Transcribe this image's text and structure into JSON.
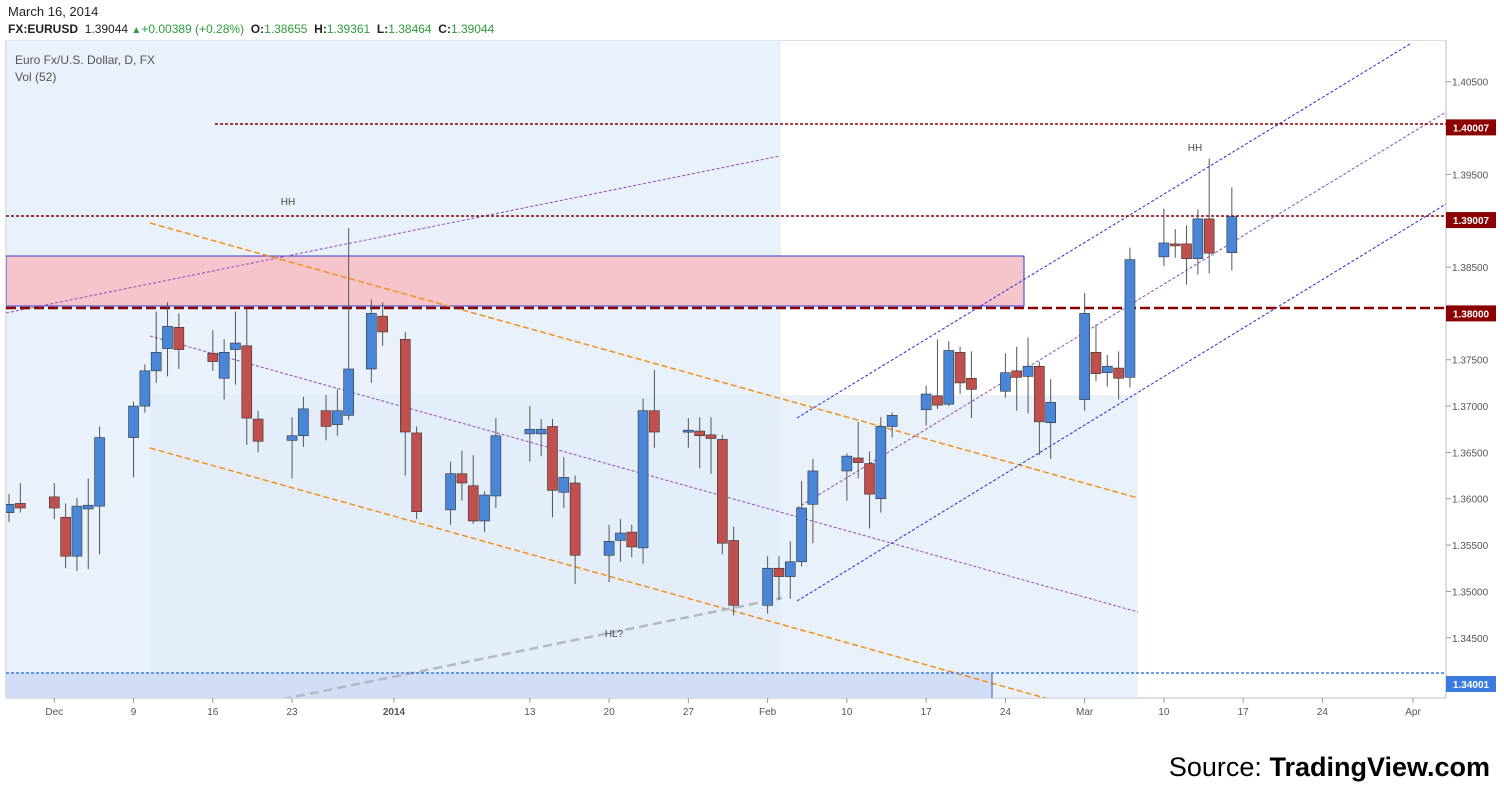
{
  "header": {
    "date": "March 16, 2014",
    "symbol": "FX:EURUSD",
    "last": "1.39044",
    "change": "+0.00389 (+0.28%)",
    "open_label": "O:",
    "open": "1.38655",
    "high_label": "H:",
    "high": "1.39361",
    "low_label": "L:",
    "low": "1.38464",
    "close_label": "C:",
    "close": "1.39044"
  },
  "pane": {
    "title": "Euro Fx/U.S. Dollar, D, FX",
    "subtitle": "Vol (52)"
  },
  "source": {
    "prefix": "Source: ",
    "brand": "TradingView.com"
  },
  "colors": {
    "up": "#4a86d8",
    "down": "#c0504d",
    "level": "#8b0000",
    "support": "#3a7be0",
    "channel_orange": "#f29022",
    "channel_blue": "#2a2acd",
    "channel_purple": "#8a4fb8",
    "shade": "#e2ecf9",
    "zone_fill": "#f5c2c8",
    "zone_stroke": "#3a3acd",
    "hl_line": "#b5b8c2"
  },
  "chart_data": {
    "type": "candlestick",
    "title": "Euro Fx/U.S. Dollar, D, FX",
    "ylim": [
      1.3385,
      1.4095
    ],
    "y_ticks": [
      "1.34500",
      "1.35000",
      "1.35500",
      "1.36000",
      "1.36500",
      "1.37000",
      "1.37500",
      "1.38000",
      "1.38500",
      "1.39000",
      "1.39500",
      "1.40000",
      "1.40500"
    ],
    "x_labels": [
      {
        "label": "Dec",
        "date": "2013-12-02"
      },
      {
        "label": "9",
        "date": "2013-12-09"
      },
      {
        "label": "16",
        "date": "2013-12-16"
      },
      {
        "label": "23",
        "date": "2013-12-23"
      },
      {
        "label": "2014",
        "date": "2014-01-01",
        "bold": true
      },
      {
        "label": "13",
        "date": "2014-01-13"
      },
      {
        "label": "20",
        "date": "2014-01-20"
      },
      {
        "label": "27",
        "date": "2014-01-27"
      },
      {
        "label": "Feb",
        "date": "2014-02-03"
      },
      {
        "label": "10",
        "date": "2014-02-10"
      },
      {
        "label": "17",
        "date": "2014-02-17"
      },
      {
        "label": "24",
        "date": "2014-02-24"
      },
      {
        "label": "Mar",
        "date": "2014-03-03"
      },
      {
        "label": "10",
        "date": "2014-03-10"
      },
      {
        "label": "17",
        "date": "2014-03-17"
      },
      {
        "label": "24",
        "date": "2014-03-24"
      },
      {
        "label": "Apr",
        "date": "2014-04-01"
      }
    ],
    "price_labels": [
      {
        "text": "1.40007",
        "value": 1.40007,
        "style": "level"
      },
      {
        "text": "1.39007",
        "value": 1.39007,
        "style": "level"
      },
      {
        "text": "1.38000",
        "value": 1.38,
        "style": "level"
      },
      {
        "text": "1.34001",
        "value": 1.34001,
        "style": "support"
      }
    ],
    "annotations": [
      "HH",
      "HH",
      "HL?"
    ],
    "candles": [
      {
        "date": "2013-11-28",
        "o": 1.3585,
        "h": 1.3605,
        "l": 1.3575,
        "c": 1.3594
      },
      {
        "date": "2013-11-29",
        "o": 1.3595,
        "h": 1.3617,
        "l": 1.3585,
        "c": 1.359
      },
      {
        "date": "2013-12-02",
        "o": 1.3602,
        "h": 1.3617,
        "l": 1.3578,
        "c": 1.359
      },
      {
        "date": "2013-12-03",
        "o": 1.358,
        "h": 1.3595,
        "l": 1.3525,
        "c": 1.3538
      },
      {
        "date": "2013-12-04",
        "o": 1.3538,
        "h": 1.3601,
        "l": 1.3522,
        "c": 1.3592
      },
      {
        "date": "2013-12-05",
        "o": 1.3589,
        "h": 1.3622,
        "l": 1.3524,
        "c": 1.3593
      },
      {
        "date": "2013-12-06",
        "o": 1.3592,
        "h": 1.3678,
        "l": 1.354,
        "c": 1.3666
      },
      {
        "date": "2013-12-09",
        "o": 1.3666,
        "h": 1.3705,
        "l": 1.3623,
        "c": 1.37
      },
      {
        "date": "2013-12-10",
        "o": 1.37,
        "h": 1.3745,
        "l": 1.3693,
        "c": 1.3738
      },
      {
        "date": "2013-12-11",
        "o": 1.3738,
        "h": 1.3802,
        "l": 1.3725,
        "c": 1.3758
      },
      {
        "date": "2013-12-12",
        "o": 1.3762,
        "h": 1.3812,
        "l": 1.3732,
        "c": 1.3786
      },
      {
        "date": "2013-12-13",
        "o": 1.3785,
        "h": 1.38,
        "l": 1.374,
        "c": 1.3761
      },
      {
        "date": "2013-12-16",
        "o": 1.3757,
        "h": 1.3782,
        "l": 1.3738,
        "c": 1.3748
      },
      {
        "date": "2013-12-17",
        "o": 1.373,
        "h": 1.3772,
        "l": 1.3707,
        "c": 1.3758
      },
      {
        "date": "2013-12-18",
        "o": 1.3761,
        "h": 1.3802,
        "l": 1.3723,
        "c": 1.3768
      },
      {
        "date": "2013-12-19",
        "o": 1.3765,
        "h": 1.3805,
        "l": 1.3658,
        "c": 1.3687
      },
      {
        "date": "2013-12-20",
        "o": 1.3686,
        "h": 1.3695,
        "l": 1.365,
        "c": 1.3662
      },
      {
        "date": "2013-12-23",
        "o": 1.3663,
        "h": 1.3688,
        "l": 1.3622,
        "c": 1.3668
      },
      {
        "date": "2013-12-24",
        "o": 1.3668,
        "h": 1.371,
        "l": 1.3656,
        "c": 1.3697
      },
      {
        "date": "2013-12-26",
        "o": 1.3695,
        "h": 1.3712,
        "l": 1.3663,
        "c": 1.3678
      },
      {
        "date": "2013-12-27",
        "o": 1.368,
        "h": 1.3718,
        "l": 1.3668,
        "c": 1.3695
      },
      {
        "date": "2013-12-28",
        "o": 1.369,
        "h": 1.3892,
        "l": 1.3685,
        "c": 1.374
      },
      {
        "date": "2013-12-30",
        "o": 1.374,
        "h": 1.3815,
        "l": 1.3725,
        "c": 1.38
      },
      {
        "date": "2013-12-31",
        "o": 1.3797,
        "h": 1.3812,
        "l": 1.3765,
        "c": 1.378
      },
      {
        "date": "2014-01-02",
        "o": 1.3772,
        "h": 1.378,
        "l": 1.3625,
        "c": 1.3672
      },
      {
        "date": "2014-01-03",
        "o": 1.3671,
        "h": 1.3678,
        "l": 1.3578,
        "c": 1.3586
      },
      {
        "date": "2014-01-06",
        "o": 1.3588,
        "h": 1.364,
        "l": 1.3572,
        "c": 1.3627
      },
      {
        "date": "2014-01-07",
        "o": 1.3627,
        "h": 1.3652,
        "l": 1.3598,
        "c": 1.3617
      },
      {
        "date": "2014-01-08",
        "o": 1.3614,
        "h": 1.3647,
        "l": 1.3573,
        "c": 1.3576
      },
      {
        "date": "2014-01-09",
        "o": 1.3576,
        "h": 1.3608,
        "l": 1.3564,
        "c": 1.3604
      },
      {
        "date": "2014-01-10",
        "o": 1.3603,
        "h": 1.3687,
        "l": 1.359,
        "c": 1.3668
      },
      {
        "date": "2014-01-13",
        "o": 1.367,
        "h": 1.37,
        "l": 1.364,
        "c": 1.3675
      },
      {
        "date": "2014-01-14",
        "o": 1.367,
        "h": 1.3686,
        "l": 1.3646,
        "c": 1.3675
      },
      {
        "date": "2014-01-15",
        "o": 1.3678,
        "h": 1.3686,
        "l": 1.358,
        "c": 1.3609
      },
      {
        "date": "2014-01-16",
        "o": 1.3607,
        "h": 1.3645,
        "l": 1.359,
        "c": 1.3623
      },
      {
        "date": "2014-01-17",
        "o": 1.3617,
        "h": 1.3625,
        "l": 1.3508,
        "c": 1.3539
      },
      {
        "date": "2014-01-20",
        "o": 1.3539,
        "h": 1.3572,
        "l": 1.351,
        "c": 1.3554
      },
      {
        "date": "2014-01-21",
        "o": 1.3555,
        "h": 1.3578,
        "l": 1.3532,
        "c": 1.3563
      },
      {
        "date": "2014-01-22",
        "o": 1.3564,
        "h": 1.3572,
        "l": 1.3537,
        "c": 1.3548
      },
      {
        "date": "2014-01-23",
        "o": 1.3547,
        "h": 1.3708,
        "l": 1.353,
        "c": 1.3695
      },
      {
        "date": "2014-01-24",
        "o": 1.3695,
        "h": 1.3739,
        "l": 1.3655,
        "c": 1.3672
      },
      {
        "date": "2014-01-27",
        "o": 1.3674,
        "h": 1.3687,
        "l": 1.3655,
        "c": 1.3674
      },
      {
        "date": "2014-01-28",
        "o": 1.3673,
        "h": 1.3688,
        "l": 1.3633,
        "c": 1.3668
      },
      {
        "date": "2014-01-29",
        "o": 1.3669,
        "h": 1.3688,
        "l": 1.3627,
        "c": 1.3665
      },
      {
        "date": "2014-01-30",
        "o": 1.3664,
        "h": 1.3669,
        "l": 1.354,
        "c": 1.3552
      },
      {
        "date": "2014-01-31",
        "o": 1.3555,
        "h": 1.357,
        "l": 1.3474,
        "c": 1.3485
      },
      {
        "date": "2014-02-03",
        "o": 1.3485,
        "h": 1.3538,
        "l": 1.3476,
        "c": 1.3525
      },
      {
        "date": "2014-02-04",
        "o": 1.3525,
        "h": 1.3538,
        "l": 1.3491,
        "c": 1.3516
      },
      {
        "date": "2014-02-05",
        "o": 1.3516,
        "h": 1.3554,
        "l": 1.3492,
        "c": 1.3532
      },
      {
        "date": "2014-02-06",
        "o": 1.3532,
        "h": 1.3619,
        "l": 1.3527,
        "c": 1.359
      },
      {
        "date": "2014-02-07",
        "o": 1.3594,
        "h": 1.3643,
        "l": 1.3552,
        "c": 1.363
      },
      {
        "date": "2014-02-10",
        "o": 1.363,
        "h": 1.3649,
        "l": 1.3598,
        "c": 1.3646
      },
      {
        "date": "2014-02-11",
        "o": 1.3644,
        "h": 1.3683,
        "l": 1.3622,
        "c": 1.3639
      },
      {
        "date": "2014-02-12",
        "o": 1.3638,
        "h": 1.3651,
        "l": 1.3568,
        "c": 1.3605
      },
      {
        "date": "2014-02-13",
        "o": 1.36,
        "h": 1.3688,
        "l": 1.3585,
        "c": 1.3678
      },
      {
        "date": "2014-02-14",
        "o": 1.3678,
        "h": 1.3693,
        "l": 1.3666,
        "c": 1.369
      },
      {
        "date": "2014-02-17",
        "o": 1.3696,
        "h": 1.3722,
        "l": 1.3679,
        "c": 1.3713
      },
      {
        "date": "2014-02-18",
        "o": 1.3711,
        "h": 1.3772,
        "l": 1.3697,
        "c": 1.3701
      },
      {
        "date": "2014-02-19",
        "o": 1.3702,
        "h": 1.377,
        "l": 1.37,
        "c": 1.376
      },
      {
        "date": "2014-02-20",
        "o": 1.3758,
        "h": 1.3764,
        "l": 1.3713,
        "c": 1.3725
      },
      {
        "date": "2014-02-21",
        "o": 1.373,
        "h": 1.3759,
        "l": 1.3687,
        "c": 1.3718
      },
      {
        "date": "2014-02-24",
        "o": 1.3716,
        "h": 1.3757,
        "l": 1.3709,
        "c": 1.3736
      },
      {
        "date": "2014-02-25",
        "o": 1.3738,
        "h": 1.3764,
        "l": 1.3695,
        "c": 1.3731
      },
      {
        "date": "2014-02-26",
        "o": 1.3732,
        "h": 1.3774,
        "l": 1.3692,
        "c": 1.3743
      },
      {
        "date": "2014-02-27",
        "o": 1.3743,
        "h": 1.3748,
        "l": 1.3647,
        "c": 1.3683
      },
      {
        "date": "2014-02-28",
        "o": 1.3682,
        "h": 1.3729,
        "l": 1.3643,
        "c": 1.3704
      },
      {
        "date": "2014-03-03",
        "o": 1.3707,
        "h": 1.3822,
        "l": 1.3695,
        "c": 1.38
      },
      {
        "date": "2014-03-04",
        "o": 1.3758,
        "h": 1.3788,
        "l": 1.3727,
        "c": 1.3735
      },
      {
        "date": "2014-03-05",
        "o": 1.3736,
        "h": 1.3755,
        "l": 1.3721,
        "c": 1.3743
      },
      {
        "date": "2014-03-06",
        "o": 1.3741,
        "h": 1.3759,
        "l": 1.3707,
        "c": 1.373
      },
      {
        "date": "2014-03-07",
        "o": 1.3731,
        "h": 1.3871,
        "l": 1.372,
        "c": 1.3858
      },
      {
        "date": "2014-03-10",
        "o": 1.3861,
        "h": 1.3913,
        "l": 1.3851,
        "c": 1.3876
      },
      {
        "date": "2014-03-11",
        "o": 1.3875,
        "h": 1.3891,
        "l": 1.386,
        "c": 1.3874
      },
      {
        "date": "2014-03-12",
        "o": 1.3875,
        "h": 1.3895,
        "l": 1.3831,
        "c": 1.3859
      },
      {
        "date": "2014-03-13",
        "o": 1.3859,
        "h": 1.3912,
        "l": 1.3842,
        "c": 1.3902
      },
      {
        "date": "2014-03-14",
        "o": 1.3902,
        "h": 1.3967,
        "l": 1.3843,
        "c": 1.3865
      },
      {
        "date": "2014-03-16",
        "o": 1.38655,
        "h": 1.39361,
        "l": 1.38464,
        "c": 1.39044
      }
    ]
  }
}
